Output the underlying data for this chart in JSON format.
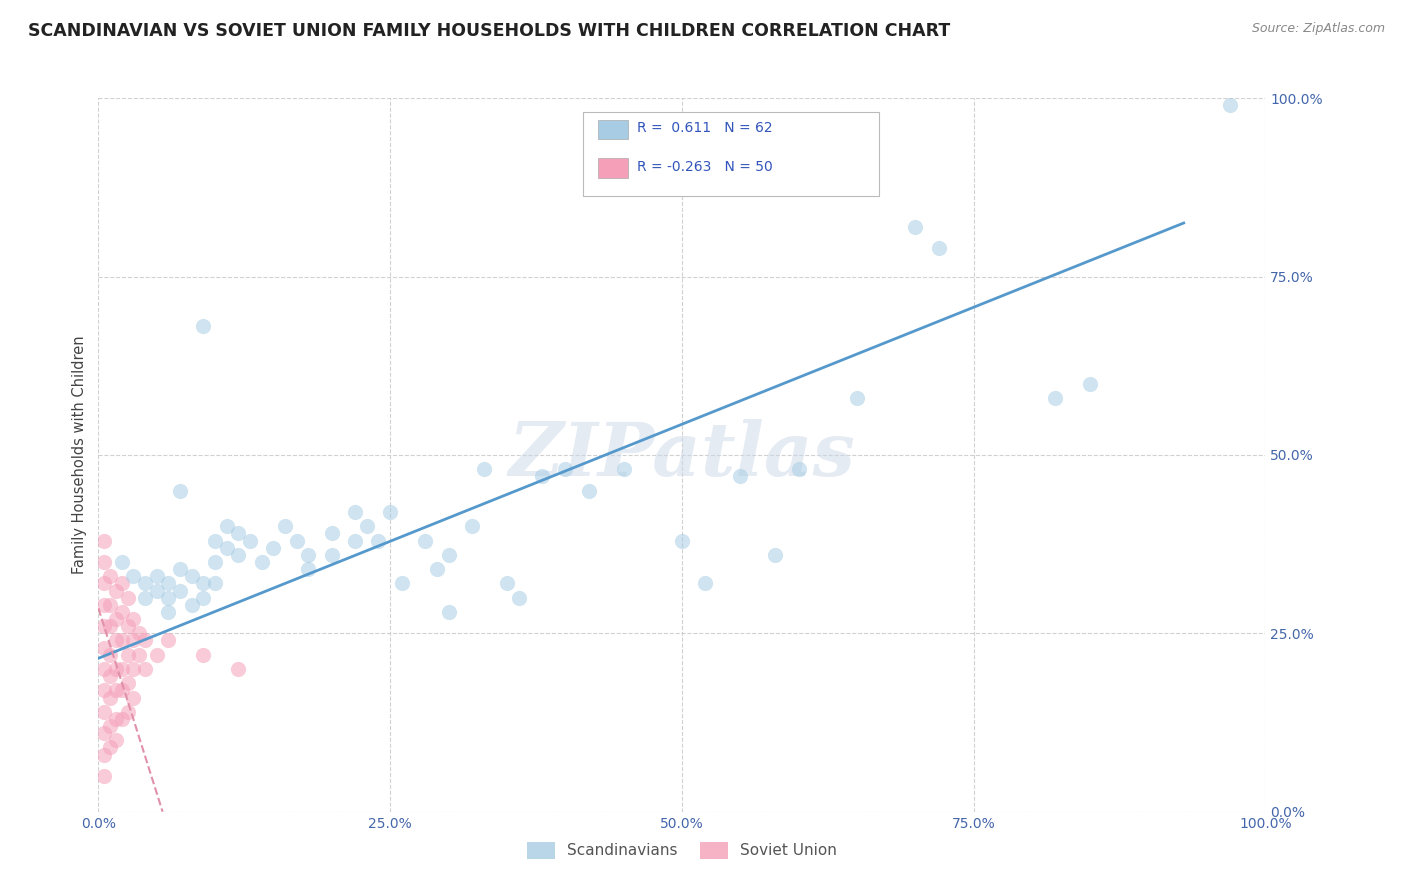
{
  "title": "SCANDINAVIAN VS SOVIET UNION FAMILY HOUSEHOLDS WITH CHILDREN CORRELATION CHART",
  "source": "Source: ZipAtlas.com",
  "ylabel": "Family Households with Children",
  "xlim": [
    0,
    1
  ],
  "ylim": [
    0,
    1
  ],
  "xticks": [
    0.0,
    0.25,
    0.5,
    0.75,
    1.0
  ],
  "yticks": [
    0.0,
    0.25,
    0.5,
    0.75,
    1.0
  ],
  "xticklabels": [
    "0.0%",
    "25.0%",
    "50.0%",
    "75.0%",
    "100.0%"
  ],
  "yticklabels": [
    "0.0%",
    "25.0%",
    "50.0%",
    "75.0%",
    "100.0%"
  ],
  "watermark": "ZIPatlas",
  "legend_r1": "R =  0.611   N = 62",
  "legend_r2": "R = -0.263   N = 50",
  "legend_bottom": [
    "Scandinavians",
    "Soviet Union"
  ],
  "scandinavian_color": "#a8cce4",
  "soviet_color": "#f5a0b8",
  "blue_line_color": "#5599cc",
  "pink_line_color": "#e090a8",
  "legend_blue": "#a8cce4",
  "legend_pink": "#f5a0b8",
  "scandinavian_points": [
    [
      0.02,
      0.35
    ],
    [
      0.03,
      0.33
    ],
    [
      0.04,
      0.32
    ],
    [
      0.04,
      0.3
    ],
    [
      0.05,
      0.31
    ],
    [
      0.05,
      0.33
    ],
    [
      0.06,
      0.32
    ],
    [
      0.06,
      0.3
    ],
    [
      0.06,
      0.28
    ],
    [
      0.07,
      0.34
    ],
    [
      0.07,
      0.31
    ],
    [
      0.08,
      0.29
    ],
    [
      0.08,
      0.33
    ],
    [
      0.09,
      0.32
    ],
    [
      0.09,
      0.3
    ],
    [
      0.1,
      0.35
    ],
    [
      0.1,
      0.38
    ],
    [
      0.1,
      0.32
    ],
    [
      0.11,
      0.4
    ],
    [
      0.11,
      0.37
    ],
    [
      0.12,
      0.39
    ],
    [
      0.12,
      0.36
    ],
    [
      0.13,
      0.38
    ],
    [
      0.14,
      0.35
    ],
    [
      0.15,
      0.37
    ],
    [
      0.16,
      0.4
    ],
    [
      0.17,
      0.38
    ],
    [
      0.18,
      0.36
    ],
    [
      0.18,
      0.34
    ],
    [
      0.2,
      0.39
    ],
    [
      0.2,
      0.36
    ],
    [
      0.22,
      0.42
    ],
    [
      0.22,
      0.38
    ],
    [
      0.23,
      0.4
    ],
    [
      0.24,
      0.38
    ],
    [
      0.25,
      0.42
    ],
    [
      0.26,
      0.32
    ],
    [
      0.28,
      0.38
    ],
    [
      0.29,
      0.34
    ],
    [
      0.3,
      0.28
    ],
    [
      0.3,
      0.36
    ],
    [
      0.32,
      0.4
    ],
    [
      0.33,
      0.48
    ],
    [
      0.35,
      0.32
    ],
    [
      0.36,
      0.3
    ],
    [
      0.38,
      0.47
    ],
    [
      0.4,
      0.48
    ],
    [
      0.42,
      0.45
    ],
    [
      0.45,
      0.48
    ],
    [
      0.5,
      0.38
    ],
    [
      0.52,
      0.32
    ],
    [
      0.55,
      0.47
    ],
    [
      0.58,
      0.36
    ],
    [
      0.6,
      0.48
    ],
    [
      0.09,
      0.68
    ],
    [
      0.65,
      0.58
    ],
    [
      0.7,
      0.82
    ],
    [
      0.72,
      0.79
    ],
    [
      0.82,
      0.58
    ],
    [
      0.85,
      0.6
    ],
    [
      0.97,
      0.99
    ],
    [
      0.07,
      0.45
    ]
  ],
  "soviet_points": [
    [
      0.005,
      0.38
    ],
    [
      0.005,
      0.35
    ],
    [
      0.005,
      0.32
    ],
    [
      0.005,
      0.29
    ],
    [
      0.005,
      0.26
    ],
    [
      0.005,
      0.23
    ],
    [
      0.005,
      0.2
    ],
    [
      0.005,
      0.17
    ],
    [
      0.005,
      0.14
    ],
    [
      0.005,
      0.11
    ],
    [
      0.005,
      0.08
    ],
    [
      0.005,
      0.05
    ],
    [
      0.01,
      0.33
    ],
    [
      0.01,
      0.29
    ],
    [
      0.01,
      0.26
    ],
    [
      0.01,
      0.22
    ],
    [
      0.01,
      0.19
    ],
    [
      0.01,
      0.16
    ],
    [
      0.01,
      0.12
    ],
    [
      0.01,
      0.09
    ],
    [
      0.015,
      0.31
    ],
    [
      0.015,
      0.27
    ],
    [
      0.015,
      0.24
    ],
    [
      0.015,
      0.2
    ],
    [
      0.015,
      0.17
    ],
    [
      0.015,
      0.13
    ],
    [
      0.015,
      0.1
    ],
    [
      0.02,
      0.32
    ],
    [
      0.02,
      0.28
    ],
    [
      0.02,
      0.24
    ],
    [
      0.02,
      0.2
    ],
    [
      0.02,
      0.17
    ],
    [
      0.02,
      0.13
    ],
    [
      0.025,
      0.3
    ],
    [
      0.025,
      0.26
    ],
    [
      0.025,
      0.22
    ],
    [
      0.025,
      0.18
    ],
    [
      0.025,
      0.14
    ],
    [
      0.03,
      0.27
    ],
    [
      0.03,
      0.24
    ],
    [
      0.03,
      0.2
    ],
    [
      0.03,
      0.16
    ],
    [
      0.035,
      0.25
    ],
    [
      0.035,
      0.22
    ],
    [
      0.04,
      0.24
    ],
    [
      0.04,
      0.2
    ],
    [
      0.05,
      0.22
    ],
    [
      0.06,
      0.24
    ],
    [
      0.09,
      0.22
    ],
    [
      0.12,
      0.2
    ]
  ],
  "blue_line_x": [
    0.0,
    0.93
  ],
  "blue_line_y": [
    0.215,
    0.825
  ],
  "pink_line_x": [
    0.0,
    0.055
  ],
  "pink_line_y": [
    0.285,
    0.0
  ],
  "grid_color": "#cccccc",
  "bg_color": "#ffffff",
  "title_fontsize": 12.5,
  "axis_fontsize": 10.5,
  "tick_fontsize": 10,
  "tick_color": "#4466aa",
  "scatter_size": 120,
  "scatter_alpha": 0.55
}
